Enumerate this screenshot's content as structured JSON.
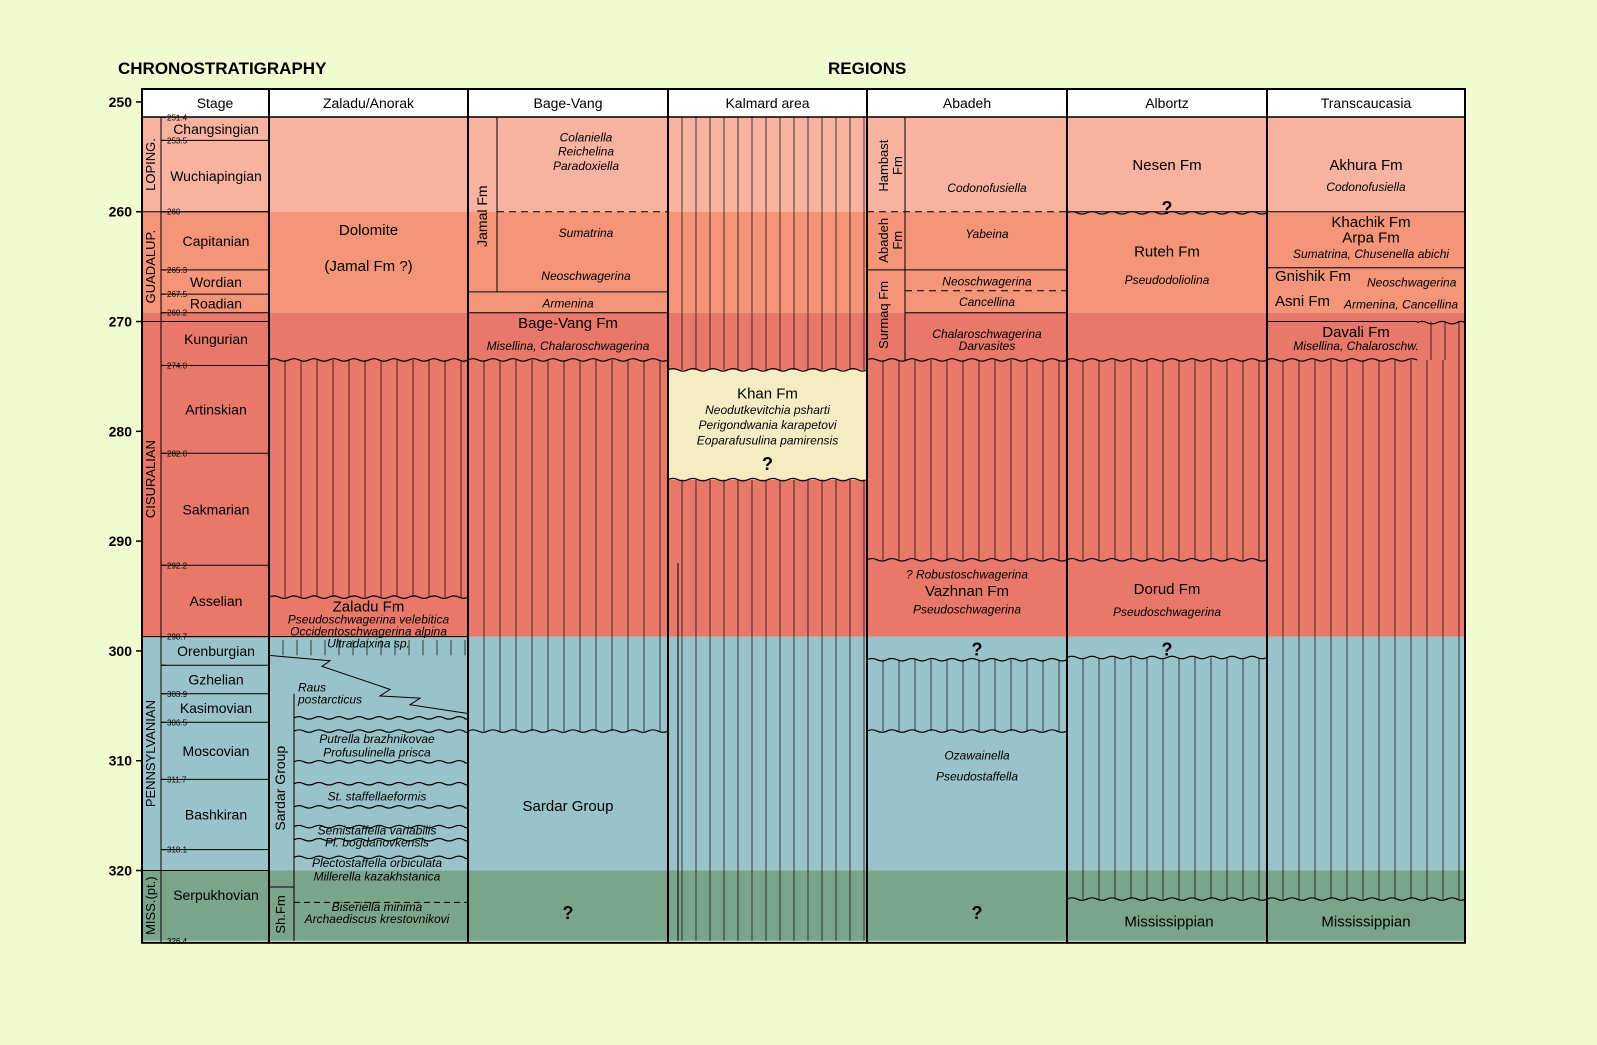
{
  "headers": {
    "left": "CHRONOSTRATIGRAPHY",
    "right": "REGIONS"
  },
  "colors": {
    "background": "#f2fad2",
    "lopingian": "#f7b2a0",
    "guadalupian": "#f49478",
    "cisuralian": "#e8786a",
    "pennsylvanian": "#99c3c8",
    "mississippian": "#7aa58b",
    "khan": "#f6ecc4"
  },
  "axis": {
    "min": 250,
    "max": 327,
    "major_ticks": [
      250,
      260,
      270,
      280,
      290,
      300,
      310,
      320
    ]
  },
  "columns": [
    "Stage",
    "Zaladu/Anorak",
    "Bage-Vang",
    "Kalmard area",
    "Abadeh",
    "Albortz",
    "Transcaucasia"
  ],
  "series": [
    {
      "name": "LOPING.",
      "top": 251.4,
      "base": 260
    },
    {
      "name": "GUADALUP.",
      "top": 260,
      "base": 270
    },
    {
      "name": "CISURALIAN",
      "top": 270,
      "base": 298.7
    },
    {
      "name": "PENNSYLVANIAN",
      "top": 298.7,
      "base": 320
    },
    {
      "name": "MISS.(pt.)",
      "top": 320,
      "base": 326.4
    }
  ],
  "stages": [
    {
      "name": "Changsingian",
      "top": 251.4,
      "base": 253.5
    },
    {
      "name": "Wuchiapingian",
      "top": 253.5,
      "base": 260
    },
    {
      "name": "Capitanian",
      "top": 260,
      "base": 265.3
    },
    {
      "name": "Wordian",
      "top": 265.3,
      "base": 267.5
    },
    {
      "name": "Roadian",
      "top": 267.5,
      "base": 269.2
    },
    {
      "name": "Kungurian",
      "top": 269.2,
      "base": 274.0
    },
    {
      "name": "Artinskian",
      "top": 274.0,
      "base": 282.0
    },
    {
      "name": "Sakmarian",
      "top": 282.0,
      "base": 292.2
    },
    {
      "name": "Asselian",
      "top": 292.2,
      "base": 298.7
    },
    {
      "name": "Orenburgian",
      "top": 298.7,
      "base": 301.3
    },
    {
      "name": "Gzhelian",
      "top": 301.3,
      "base": 303.9
    },
    {
      "name": "Kasimovian",
      "top": 303.9,
      "base": 306.5
    },
    {
      "name": "Moscovian",
      "top": 306.5,
      "base": 311.7
    },
    {
      "name": "Bashkiran",
      "top": 311.7,
      "base": 318.1
    },
    {
      "name": "Serpukhovian",
      "top": 318.1,
      "base": 326.4
    }
  ],
  "age_labels": [
    "251.4",
    "253.5",
    "260",
    "265.3",
    "267.5",
    "269.2",
    "274.0",
    "282.0",
    "292.2",
    "298.7",
    "303.9",
    "306.5",
    "311.7",
    "318.1",
    "326.4"
  ],
  "zaladu": {
    "dolomite": "Dolomite",
    "jamal": "(Jamal Fm ?)",
    "zaladu_fm": "Zaladu Fm",
    "fossils": [
      "Pseudoschwagerina velebitica",
      "Occidentoschwagerina alpina",
      "Ultradaixina sp."
    ],
    "raus": [
      "Raus",
      "postarcticus"
    ],
    "sardar_group": "Sardar Group",
    "sh_fm": "Sh.Fm",
    "sardar_fossils": [
      "Putrella brazhnikovae",
      "Profusulinella prisca",
      "St. staffellaeformis",
      "Semistaffella variabilis",
      "Pl. bogdanovkensis",
      "Plectostaffella orbiculata",
      "Millerella kazakhstanica",
      "Biseriella minima",
      "Archaediscus krestovnikovi"
    ]
  },
  "bage": {
    "jamal_fm": "Jamal Fm",
    "upper_fossils": [
      "Colaniella",
      "Reichelina",
      "Paradoxiella"
    ],
    "sumatrina": "Sumatrina",
    "neoschwagerina": "Neoschwagerina",
    "armenina": "Armenina",
    "bage_vang_fm": "Bage-Vang Fm",
    "misellina": "Misellina, Chalaroschwagerina",
    "sardar_group": "Sardar Group",
    "question": "?"
  },
  "kalmard": {
    "khan_fm": "Khan Fm",
    "fossils": [
      "Neodutkevitchia psharti",
      "Perigondwania karapetovi",
      "Eoparafusulina pamirensis"
    ],
    "question": "?"
  },
  "abadeh": {
    "hambast_fm": [
      "Hambast",
      "Fm"
    ],
    "abadeh_fm": [
      "Abadeh",
      "Fm"
    ],
    "surmaq_fm": "Surmaq Fm",
    "codonofusiella": "Codonofusiella",
    "yabeina": "Yabeina",
    "neoschwagerina": "Neoschwagerina",
    "cancellina": "Cancellina",
    "chalaro": [
      "Chalaroschwagerina",
      "Darvasites"
    ],
    "robusto": "? Robustoschwagerina",
    "vazhnan_fm": "Vazhnan Fm",
    "pseudoschwagerina": "Pseudoschwagerina",
    "q_upper": "?",
    "ozawainella": "Ozawainella",
    "pseudostaffella": "Pseudostaffella",
    "q_lower": "?"
  },
  "albortz": {
    "nesen_fm": "Nesen Fm",
    "q_top": "?",
    "ruteh_fm": "Ruteh Fm",
    "pseudodoliolina": "Pseudodoliolina",
    "dorud_fm": "Dorud Fm",
    "pseudoschwagerina": "Pseudoschwagerina",
    "q_mid": "?",
    "mississippian": "Mississippian"
  },
  "transcaucasia": {
    "akhura_fm": "Akhura Fm",
    "codonofusiella": "Codonofusiella",
    "khachik_fm": "Khachik Fm",
    "arpa_fm": "Arpa Fm",
    "sumatrina": "Sumatrina, Chusenella abichi",
    "gnishik_fm": "Gnishik Fm",
    "neoschwagerina": "Neoschwagerina",
    "asni_fm": "Asni Fm",
    "armenina": "Armenina, Cancellina",
    "davali_fm": "Davali Fm",
    "misellina": "Misellina, Chalaroschw.",
    "mississippian": "Mississippian"
  }
}
